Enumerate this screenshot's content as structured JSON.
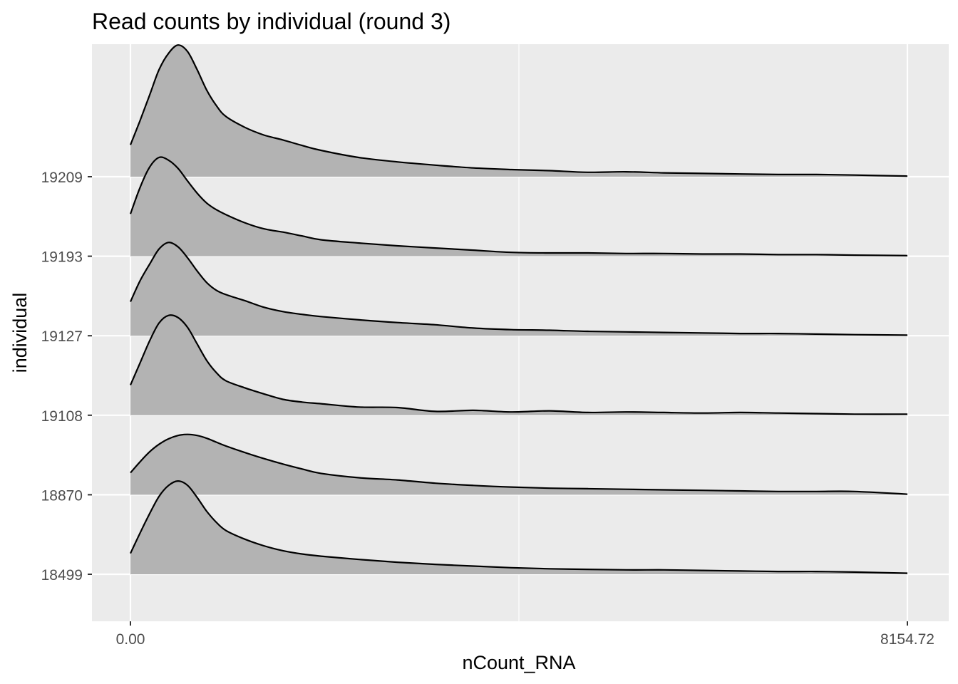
{
  "chart_data": {
    "type": "area",
    "subtype": "ridgeline",
    "title": "Read counts by individual (round 3)",
    "xlabel": "nCount_RNA",
    "ylabel": "individual",
    "xlim": [
      0,
      8154.72
    ],
    "x_ticks": [
      "0.00",
      "8154.72"
    ],
    "categories": [
      "18499",
      "18870",
      "19108",
      "19127",
      "19193",
      "19209"
    ],
    "grid": true,
    "legend": "none",
    "colors": {
      "panel": "#ebebeb",
      "grid": "#ffffff",
      "fill": "#b3b3b3",
      "line": "#000000"
    },
    "x": [
      0,
      100,
      200,
      300,
      400,
      500,
      600,
      700,
      800,
      900,
      1000,
      1200,
      1400,
      1600,
      1800,
      2000,
      2400,
      2800,
      3200,
      3600,
      4000,
      4400,
      4800,
      5200,
      5600,
      6000,
      6400,
      6800,
      7200,
      7600,
      8154.72
    ],
    "series": [
      {
        "name": "18499",
        "values": [
          0.38,
          0.75,
          1.1,
          1.42,
          1.62,
          1.7,
          1.62,
          1.4,
          1.15,
          0.95,
          0.8,
          0.64,
          0.52,
          0.43,
          0.37,
          0.33,
          0.27,
          0.22,
          0.18,
          0.15,
          0.12,
          0.1,
          0.09,
          0.08,
          0.08,
          0.07,
          0.06,
          0.05,
          0.05,
          0.04,
          0.02
        ]
      },
      {
        "name": "18870",
        "values": [
          0.4,
          0.6,
          0.78,
          0.92,
          1.02,
          1.08,
          1.1,
          1.08,
          1.03,
          0.96,
          0.89,
          0.77,
          0.66,
          0.56,
          0.47,
          0.39,
          0.31,
          0.27,
          0.21,
          0.17,
          0.14,
          0.12,
          0.11,
          0.1,
          0.09,
          0.08,
          0.07,
          0.06,
          0.06,
          0.06,
          0.01
        ]
      },
      {
        "name": "19108",
        "values": [
          0.55,
          0.95,
          1.35,
          1.68,
          1.82,
          1.78,
          1.6,
          1.3,
          1.0,
          0.78,
          0.63,
          0.5,
          0.39,
          0.29,
          0.24,
          0.21,
          0.15,
          0.14,
          0.07,
          0.09,
          0.06,
          0.08,
          0.05,
          0.06,
          0.05,
          0.04,
          0.05,
          0.04,
          0.03,
          0.02,
          0.02
        ]
      },
      {
        "name": "19127",
        "values": [
          0.62,
          1.0,
          1.3,
          1.58,
          1.7,
          1.62,
          1.42,
          1.18,
          0.97,
          0.83,
          0.75,
          0.64,
          0.52,
          0.44,
          0.39,
          0.35,
          0.29,
          0.24,
          0.2,
          0.14,
          0.11,
          0.1,
          0.08,
          0.07,
          0.06,
          0.05,
          0.04,
          0.04,
          0.03,
          0.02,
          0.01
        ]
      },
      {
        "name": "19193",
        "values": [
          0.77,
          1.25,
          1.62,
          1.8,
          1.75,
          1.6,
          1.37,
          1.15,
          0.97,
          0.85,
          0.76,
          0.61,
          0.5,
          0.44,
          0.37,
          0.3,
          0.24,
          0.19,
          0.15,
          0.11,
          0.07,
          0.06,
          0.06,
          0.05,
          0.05,
          0.04,
          0.04,
          0.03,
          0.03,
          0.02,
          0.01
        ]
      },
      {
        "name": "19209",
        "values": [
          0.58,
          1.02,
          1.48,
          1.95,
          2.25,
          2.4,
          2.28,
          1.95,
          1.58,
          1.3,
          1.1,
          0.9,
          0.76,
          0.67,
          0.57,
          0.48,
          0.35,
          0.27,
          0.21,
          0.16,
          0.13,
          0.11,
          0.08,
          0.09,
          0.07,
          0.06,
          0.05,
          0.04,
          0.04,
          0.03,
          0.01
        ]
      }
    ]
  }
}
